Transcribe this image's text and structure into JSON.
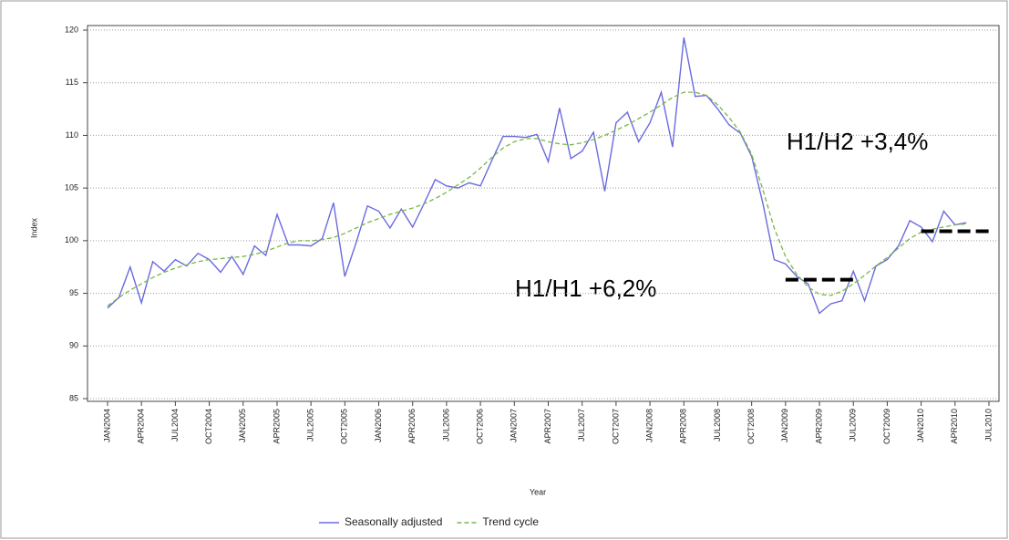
{
  "chart_data": {
    "type": "line",
    "x_label": "Year",
    "y_label": "Index",
    "categories": [
      "JAN2004",
      null,
      null,
      "APR2004",
      null,
      null,
      "JUL2004",
      null,
      null,
      "OCT2004",
      null,
      null,
      "JAN2005",
      null,
      null,
      "APR2005",
      null,
      null,
      "JUL2005",
      null,
      null,
      "OCT2005",
      null,
      null,
      "JAN2006",
      null,
      null,
      "APR2006",
      null,
      null,
      "JUL2006",
      null,
      null,
      "OCT2006",
      null,
      null,
      "JAN2007",
      null,
      null,
      "APR2007",
      null,
      null,
      "JUL2007",
      null,
      null,
      "OCT2007",
      null,
      null,
      "JAN2008",
      null,
      null,
      "APR2008",
      null,
      null,
      "JUL2008",
      null,
      null,
      "OCT2008",
      null,
      null,
      "JAN2009",
      null,
      null,
      "APR2009",
      null,
      null,
      "JUL2009",
      null,
      null,
      "OCT2009",
      null,
      null,
      "JAN2010",
      null,
      null,
      "APR2010",
      null,
      null,
      "JUL2010"
    ],
    "series": [
      {
        "name": "Seasonally adjusted",
        "color": "#6a6ae0",
        "dash": "solid",
        "values": [
          93.6,
          94.6,
          97.5,
          94.1,
          98.0,
          97.1,
          98.2,
          97.6,
          98.8,
          98.2,
          97.0,
          98.5,
          96.8,
          99.5,
          98.6,
          102.5,
          99.6,
          99.6,
          99.5,
          100.2,
          103.6,
          96.6,
          99.8,
          103.3,
          102.8,
          101.2,
          103.0,
          101.3,
          103.5,
          105.8,
          105.2,
          105.0,
          105.5,
          105.2,
          107.6,
          109.9,
          109.9,
          109.8,
          110.1,
          107.5,
          112.6,
          107.8,
          108.5,
          110.3,
          104.7,
          111.2,
          112.2,
          109.4,
          111.2,
          114.1,
          108.9,
          119.3,
          113.7,
          113.8,
          112.5,
          111.0,
          110.2,
          108.0,
          103.5,
          98.2,
          97.8,
          96.6,
          95.9,
          93.1,
          94.0,
          94.3,
          97.1,
          94.3,
          97.6,
          98.2,
          99.5,
          101.9,
          101.3,
          99.9,
          102.8,
          101.5,
          101.7,
          null,
          null
        ]
      },
      {
        "name": "Trend cycle",
        "color": "#7ab648",
        "dash": "dashed",
        "values": [
          93.8,
          94.6,
          95.3,
          95.9,
          96.5,
          97.0,
          97.4,
          97.7,
          98.0,
          98.2,
          98.3,
          98.4,
          98.5,
          98.7,
          99.0,
          99.4,
          99.8,
          100.0,
          100.0,
          100.1,
          100.3,
          100.7,
          101.2,
          101.7,
          102.1,
          102.5,
          102.8,
          103.1,
          103.5,
          104.0,
          104.6,
          105.3,
          106.0,
          106.9,
          107.9,
          108.8,
          109.4,
          109.7,
          109.7,
          109.4,
          109.2,
          109.1,
          109.3,
          109.6,
          110.0,
          110.5,
          111.0,
          111.6,
          112.2,
          112.9,
          113.6,
          114.1,
          114.1,
          113.8,
          112.9,
          111.7,
          110.3,
          108.2,
          104.8,
          101.2,
          98.5,
          96.8,
          95.6,
          94.9,
          94.8,
          95.2,
          95.9,
          96.7,
          97.6,
          98.4,
          99.3,
          100.2,
          100.8,
          101.1,
          101.3,
          101.5,
          101.6,
          null,
          null
        ]
      }
    ],
    "ylim": [
      85,
      120
    ],
    "yticks": [
      85,
      90,
      95,
      100,
      105,
      110,
      115,
      120
    ],
    "grid": true,
    "legend": "bottom",
    "reference_lines": [
      {
        "value": 96.3,
        "start": "JAN2009",
        "end": "JUL2009",
        "color": "#000000"
      },
      {
        "value": 100.9,
        "start": "JAN2010",
        "end": "JUL2010",
        "color": "#000000"
      }
    ],
    "annotations": [
      "H1/H1 +6,2%",
      "H1/H2 +3,4%"
    ]
  }
}
